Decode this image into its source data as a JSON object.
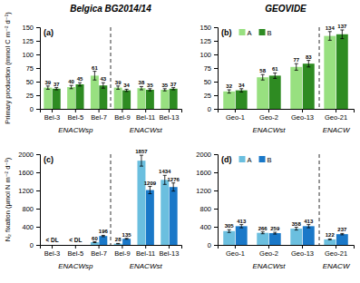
{
  "chart_data": [
    {
      "type": "bar",
      "title": "Belgica BG2014/14",
      "label": "(a)",
      "ylabel": "Primary production (mmol C m⁻² d⁻¹)",
      "categories": [
        "Bel-3",
        "Bel-5",
        "Bel-7",
        "Bel-9",
        "Bel-11",
        "Bel-13"
      ],
      "series": [
        {
          "color": "#98E080",
          "values": [
            39,
            40,
            61,
            39,
            38,
            35
          ],
          "errors": [
            3,
            3,
            8,
            3,
            3,
            2
          ]
        },
        {
          "color": "#2E8B22",
          "values": [
            37,
            45,
            43,
            34,
            35,
            37
          ],
          "errors": [
            2,
            3,
            5,
            2,
            2,
            2
          ]
        }
      ],
      "ylim": [
        0,
        150
      ],
      "yticks": [
        0,
        25,
        50,
        75,
        100,
        125,
        150
      ],
      "data_labels": true,
      "region_labels": [
        "ENACWsp",
        "ENACWst"
      ],
      "dashed_x": 2.5
    },
    {
      "type": "bar",
      "title": "GEOVIDE",
      "label": "(b)",
      "categories": [
        "Geo-1",
        "Geo-2",
        "Geo-13",
        "Geo-21"
      ],
      "series": [
        {
          "name": "A",
          "color": "#98E080",
          "values": [
            32,
            58,
            77,
            134
          ],
          "errors": [
            3,
            5,
            6,
            8
          ]
        },
        {
          "name": "B",
          "color": "#2E8B22",
          "values": [
            34,
            61,
            83,
            137
          ],
          "errors": [
            3,
            5,
            6,
            8
          ]
        }
      ],
      "ylim": [
        0,
        150
      ],
      "yticks": [
        0,
        25,
        50,
        75,
        100,
        125,
        150
      ],
      "data_labels": true,
      "legend": "upper left",
      "region_labels": [
        "ENACWst",
        "ENACW"
      ],
      "dashed_x": 2.5
    },
    {
      "type": "bar",
      "label": "(c)",
      "ylabel": "N₂ fixation (μmol N m⁻² d⁻¹)",
      "categories": [
        "Bel-3",
        "Bel-5",
        "Bel-7",
        "Bel-9",
        "Bel-11",
        "Bel-13"
      ],
      "series": [
        {
          "color": "#6BBFDF",
          "values": [
            null,
            null,
            60,
            28,
            1857,
            1434
          ],
          "errors": [
            0,
            0,
            10,
            5,
            120,
            100
          ]
        },
        {
          "color": "#1A78C8",
          "values": [
            null,
            null,
            196,
            135,
            1209,
            1276
          ],
          "errors": [
            0,
            0,
            15,
            10,
            80,
            90
          ]
        }
      ],
      "ylim": [
        0,
        2000
      ],
      "yticks": [
        0,
        400,
        800,
        1200,
        1600,
        2000
      ],
      "data_labels": true,
      "dl_labels": [
        "< DL",
        "< DL",
        null,
        null,
        null,
        null
      ],
      "region_labels": [
        "ENACWsp",
        "ENACWst"
      ],
      "dashed_x": 2.5
    },
    {
      "type": "bar",
      "label": "(d)",
      "categories": [
        "Geo-1",
        "Geo-2",
        "Geo-13",
        "Geo-21"
      ],
      "series": [
        {
          "name": "A",
          "color": "#6BBFDF",
          "values": [
            305,
            266,
            358,
            122
          ],
          "errors": [
            30,
            20,
            30,
            10
          ]
        },
        {
          "name": "B",
          "color": "#1A78C8",
          "values": [
            413,
            259,
            413,
            237
          ],
          "errors": [
            35,
            20,
            35,
            15
          ]
        }
      ],
      "ylim": [
        0,
        2000
      ],
      "yticks": [
        0,
        400,
        800,
        1200,
        1600,
        2000
      ],
      "data_labels": true,
      "legend": "upper left",
      "region_labels": [
        "ENACWst",
        "ENACW"
      ],
      "dashed_x": 2.5
    }
  ]
}
